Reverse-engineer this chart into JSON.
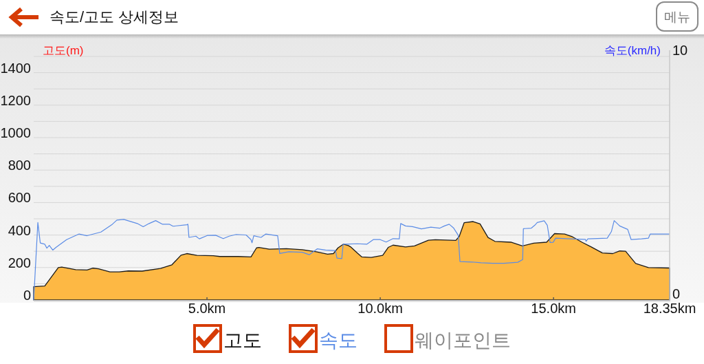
{
  "chart_data": {
    "type": "area",
    "title": "속도/고도 상세정보",
    "ylabel": "고도(m)",
    "y2label": "속도(km/h)",
    "annotations": [
      "메뉴"
    ],
    "xlim": [
      0,
      18.35
    ],
    "xticks": [
      {
        "value": 5,
        "label": "5.0km"
      },
      {
        "value": 10,
        "label": "10.0km"
      },
      {
        "value": 15,
        "label": "15.0km"
      },
      {
        "value": 18.35,
        "label": "18.35km"
      }
    ],
    "ylim": [
      0,
      1500
    ],
    "yticks": [
      0,
      {
        "value": 100,
        "label": null
      },
      200,
      {
        "value": 300,
        "label": null
      },
      400,
      {
        "value": 500,
        "label": null
      },
      600,
      {
        "value": 700,
        "label": null
      },
      800,
      {
        "value": 900,
        "label": null
      },
      1000,
      {
        "value": 1100,
        "label": null
      },
      1200,
      {
        "value": 1300,
        "label": null
      },
      1400,
      {
        "value": 1500,
        "label": null
      }
    ],
    "y2lim": [
      0,
      10
    ],
    "y2ticks": [
      0,
      10
    ],
    "grid": "y",
    "legend": "bottom",
    "series": [
      {
        "name": "고도",
        "color": "#fdb844",
        "x": [
          0,
          0.32,
          0.71,
          0.81,
          1.21,
          1.54,
          1.71,
          1.87,
          2.2,
          2.47,
          2.73,
          3.13,
          3.66,
          3.99,
          4.25,
          4.42,
          4.71,
          5.18,
          5.37,
          5.9,
          6.27,
          6.43,
          6.5,
          6.8,
          7.29,
          7.75,
          8.15,
          8.48,
          8.65,
          8.78,
          8.94,
          9.08,
          9.14,
          9.34,
          9.47,
          9.74,
          10.07,
          10.23,
          10.37,
          10.73,
          10.99,
          11.39,
          11.59,
          12.18,
          12.28,
          12.42,
          12.68,
          12.88,
          13.11,
          13.31,
          13.77,
          14.1,
          14.43,
          14.8,
          15.03,
          15.32,
          15.55,
          15.82,
          16.08,
          16.41,
          16.71,
          16.91,
          17.08,
          17.37,
          17.74,
          18.33,
          18.35
        ],
        "values": [
          82,
          86,
          200,
          203,
          187,
          185,
          196,
          192,
          173,
          173,
          179,
          178,
          194,
          217,
          276,
          286,
          275,
          273,
          268,
          268,
          265,
          321,
          324,
          313,
          316,
          310,
          297,
          282,
          286,
          321,
          344,
          335,
          328,
          289,
          265,
          262,
          275,
          324,
          338,
          327,
          333,
          368,
          371,
          367,
          392,
          476,
          483,
          469,
          385,
          361,
          356,
          333,
          350,
          356,
          409,
          406,
          389,
          356,
          328,
          290,
          286,
          302,
          300,
          225,
          200,
          197,
          197
        ]
      },
      {
        "name": "속도",
        "type": "line",
        "axis": "y2",
        "color": "#5b8ce6",
        "x": [
          0,
          0.12,
          0.19,
          0.32,
          0.38,
          0.45,
          0.55,
          0.65,
          0.95,
          1.31,
          1.54,
          1.94,
          2.27,
          2.4,
          2.6,
          2.99,
          3.16,
          3.33,
          3.52,
          3.72,
          3.92,
          4.02,
          4.42,
          4.45,
          4.48,
          4.68,
          4.78,
          5.01,
          5.25,
          5.47,
          5.64,
          5.84,
          6.13,
          6.27,
          6.3,
          6.35,
          6.56,
          6.7,
          7.04,
          7.1,
          7.36,
          7.75,
          7.95,
          8.18,
          8.42,
          8.71,
          8.75,
          8.89,
          8.93,
          9.34,
          9.61,
          9.8,
          10.0,
          10.17,
          10.37,
          10.55,
          10.59,
          10.73,
          10.93,
          11.19,
          11.46,
          11.72,
          11.85,
          11.99,
          12.12,
          12.25,
          12.3,
          12.65,
          12.91,
          13.24,
          13.57,
          13.97,
          14.11,
          14.13,
          14.36,
          14.46,
          14.53,
          14.73,
          14.82,
          14.9,
          14.99,
          15.06,
          15.49,
          15.92,
          15.94,
          15.99,
          16.55,
          16.67,
          16.75,
          16.91,
          17.14,
          17.24,
          17.54,
          17.74,
          17.79,
          18.33,
          18.35
        ],
        "values": [
          0,
          3.18,
          2.34,
          2.29,
          2.13,
          2.24,
          2.05,
          2.17,
          2.48,
          2.71,
          2.64,
          2.79,
          3.11,
          3.28,
          3.31,
          3.14,
          3.01,
          3.14,
          3.26,
          3.11,
          3.11,
          3.03,
          3.09,
          3.11,
          2.57,
          2.62,
          2.51,
          2.65,
          2.66,
          2.52,
          2.62,
          2.69,
          2.67,
          2.48,
          2.35,
          2.64,
          2.57,
          2.71,
          2.64,
          1.91,
          1.98,
          1.96,
          1.86,
          2.1,
          2.05,
          2.03,
          1.72,
          1.7,
          2.29,
          2.31,
          2.29,
          2.48,
          2.48,
          2.38,
          2.52,
          2.51,
          3.14,
          3.04,
          3.01,
          2.92,
          2.99,
          2.95,
          3.04,
          3.11,
          2.95,
          2.66,
          1.58,
          1.56,
          1.53,
          1.51,
          1.51,
          1.55,
          1.66,
          2.93,
          2.95,
          3.07,
          3.18,
          3.25,
          3.07,
          2.36,
          2.37,
          2.54,
          2.51,
          2.49,
          2.41,
          2.51,
          2.54,
          2.81,
          3.26,
          3.04,
          2.9,
          2.48,
          2.51,
          2.54,
          2.71,
          2.71,
          2.71
        ]
      },
      {
        "name": "웨이포인트",
        "type": "scatter"
      }
    ]
  }
}
